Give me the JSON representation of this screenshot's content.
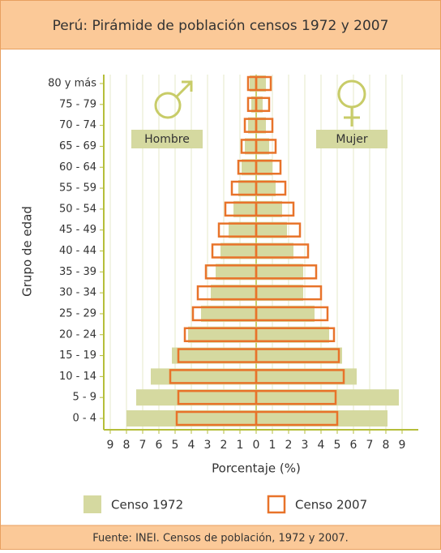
{
  "chart_data": {
    "type": "pyramid",
    "title": "Perú: Pirámide de población censos 1972 y 2007",
    "x_label": "Porcentaje (%)",
    "y_label": "Grupo de edad",
    "left_label": "Hombre",
    "right_label": "Mujer",
    "source": "Fuente: INEI. Censos de población, 1972 y 2007.",
    "categories": [
      "0 - 4",
      "5 - 9",
      "10 - 14",
      "15 - 19",
      "20 - 24",
      "25 - 29",
      "30 - 34",
      "35 - 39",
      "40 - 44",
      "45 - 49",
      "50 - 54",
      "55 - 59",
      "60 - 64",
      "65 - 69",
      "70 - 74",
      "75 - 79",
      "80 y más"
    ],
    "series": [
      {
        "name": "Censo 1972",
        "color": "#d5d9a0",
        "style": "fill",
        "hombre": [
          -8.0,
          -7.4,
          -6.5,
          -5.2,
          -4.2,
          -3.4,
          -2.8,
          -2.5,
          -2.2,
          -1.7,
          -1.4,
          -1.1,
          -0.9,
          -0.7,
          -0.5,
          -0.3,
          -0.4
        ],
        "mujer": [
          8.1,
          8.8,
          6.2,
          5.3,
          4.5,
          3.6,
          2.9,
          2.9,
          2.3,
          1.9,
          1.6,
          1.2,
          1.0,
          0.8,
          0.6,
          0.4,
          0.6
        ]
      },
      {
        "name": "Censo 2007",
        "color": "#e8732a",
        "style": "outline",
        "hombre": [
          -4.9,
          -4.8,
          -5.3,
          -4.8,
          -4.4,
          -3.9,
          -3.6,
          -3.1,
          -2.7,
          -2.3,
          -1.9,
          -1.5,
          -1.1,
          -0.9,
          -0.7,
          -0.5,
          -0.5
        ],
        "mujer": [
          5.0,
          4.9,
          5.4,
          5.1,
          4.8,
          4.4,
          4.0,
          3.7,
          3.2,
          2.7,
          2.3,
          1.8,
          1.5,
          1.2,
          1.0,
          0.8,
          0.9
        ]
      }
    ],
    "xlim": [
      -9,
      9
    ],
    "xticks": [
      {
        "value": -9,
        "label": "9"
      },
      {
        "value": -8,
        "label": "8"
      },
      {
        "value": -7,
        "label": "7"
      },
      {
        "value": -6,
        "label": "6"
      },
      {
        "value": -5,
        "label": "5"
      },
      {
        "value": -4,
        "label": "4"
      },
      {
        "value": -3,
        "label": "3"
      },
      {
        "value": -2,
        "label": "2"
      },
      {
        "value": -1,
        "label": "1"
      },
      0,
      1,
      2,
      3,
      4,
      5,
      6,
      7,
      8,
      9
    ],
    "grid": true
  }
}
